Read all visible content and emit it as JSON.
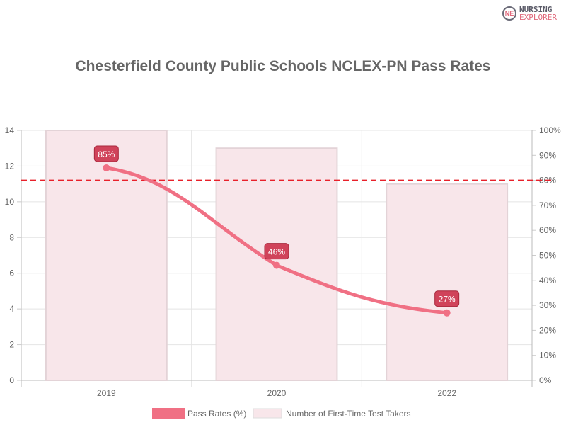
{
  "logo": {
    "line1": "NURSING",
    "line2": "EXPLORER"
  },
  "chart_data": {
    "type": "bar+line",
    "title": "Chesterfield County Public Schools NCLEX-PN Pass Rates",
    "categories": [
      "2019",
      "2020",
      "2022"
    ],
    "series": [
      {
        "name": "Pass Rates (%)",
        "type": "line",
        "axis": "right",
        "values": [
          85,
          46,
          27
        ],
        "labels": [
          "85%",
          "46%",
          "27%"
        ],
        "color": "#f07084"
      },
      {
        "name": "Number of First-Time Test Takers",
        "type": "bar",
        "axis": "left",
        "values": [
          14,
          13,
          11
        ],
        "color": "#f8e6ea"
      }
    ],
    "left_axis": {
      "ylim": [
        0,
        14
      ],
      "ticks": [
        "0",
        "2",
        "4",
        "6",
        "8",
        "10",
        "12",
        "14"
      ]
    },
    "right_axis": {
      "ylim": [
        0,
        100
      ],
      "ticks": [
        "0%",
        "10%",
        "20%",
        "30%",
        "40%",
        "50%",
        "60%",
        "70%",
        "80%",
        "90%",
        "100%"
      ]
    },
    "reference_line": {
      "value": 80,
      "axis": "right",
      "color": "#e8202a",
      "style": "dashed"
    },
    "grid": true,
    "legend": "bottom"
  }
}
